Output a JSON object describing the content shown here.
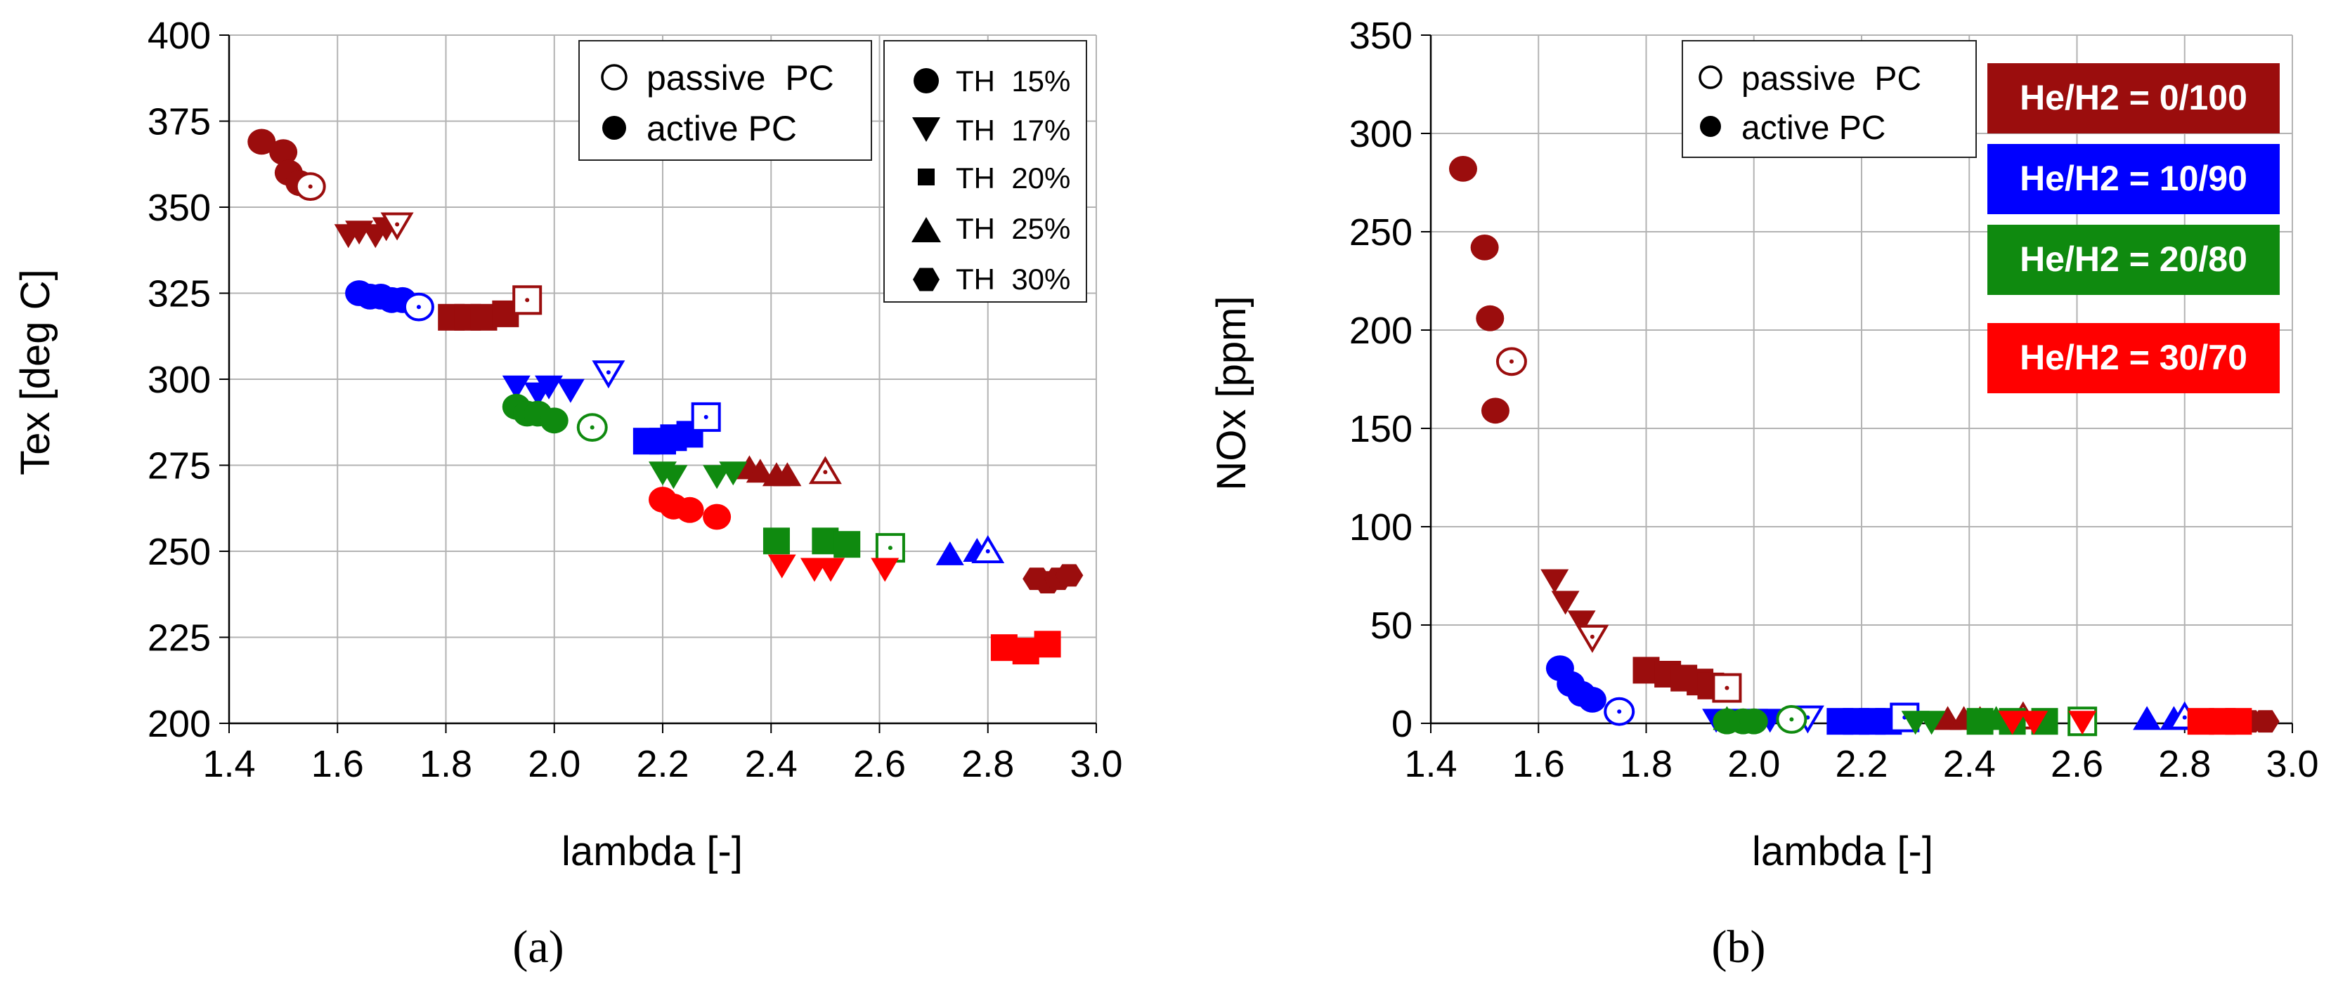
{
  "colors": {
    "dark_red": "#9b0d0d",
    "blue": "#0000ff",
    "green": "#0f8a0f",
    "red": "#ff0000",
    "grid": "#b3b3b3"
  },
  "chart_data": [
    {
      "type": "scatter",
      "panel_label": "(a)",
      "xlabel": "lambda [-]",
      "ylabel": "Tex [deg C]",
      "xlim": [
        1.4,
        3.0
      ],
      "ylim": [
        200,
        400
      ],
      "xticks": [
        "1.4",
        "1.6",
        "1.8",
        "2.0",
        "2.2",
        "2.4",
        "2.6",
        "2.8",
        "3.0"
      ],
      "yticks": [
        "200",
        "225",
        "250",
        "275",
        "300",
        "325",
        "350",
        "375",
        "400"
      ],
      "grid": true,
      "legend_pc": [
        {
          "label": "passive  PC",
          "marker": "open-circle"
        },
        {
          "label": "active PC",
          "marker": "filled-circle"
        }
      ],
      "legend_th": [
        {
          "label": "TH  15%",
          "marker": "circle"
        },
        {
          "label": "TH  17%",
          "marker": "triangle-down"
        },
        {
          "label": "TH  20%",
          "marker": "square"
        },
        {
          "label": "TH  25%",
          "marker": "triangle-up"
        },
        {
          "label": "TH  30%",
          "marker": "hexagon"
        }
      ],
      "series": [
        {
          "name": "He/H2 = 0/100, TH 15%",
          "color": "dark_red",
          "marker": "circle",
          "x": [
            1.46,
            1.5,
            1.51,
            1.53
          ],
          "y": [
            369,
            366,
            360,
            357
          ],
          "passive": {
            "x": 1.55,
            "y": 356
          }
        },
        {
          "name": "He/H2 = 0/100, TH 17%",
          "color": "dark_red",
          "marker": "triangle-down",
          "x": [
            1.62,
            1.64,
            1.67,
            1.69
          ],
          "y": [
            342,
            343,
            342,
            344
          ],
          "passive": {
            "x": 1.71,
            "y": 345
          }
        },
        {
          "name": "He/H2 = 0/100, TH 20%",
          "color": "dark_red",
          "marker": "square",
          "x": [
            1.81,
            1.84,
            1.87,
            1.91
          ],
          "y": [
            318,
            318,
            318,
            319
          ],
          "passive": {
            "x": 1.95,
            "y": 323
          }
        },
        {
          "name": "He/H2 = 0/100, TH 25%",
          "color": "dark_red",
          "marker": "triangle-up",
          "x": [
            2.36,
            2.38,
            2.41,
            2.43
          ],
          "y": [
            274,
            273,
            272,
            272
          ],
          "passive": {
            "x": 2.5,
            "y": 273
          }
        },
        {
          "name": "He/H2 = 0/100, TH 30%",
          "color": "dark_red",
          "marker": "hexagon",
          "x": [
            2.89,
            2.91,
            2.93,
            2.95
          ],
          "y": [
            242,
            241,
            242,
            243
          ],
          "passive": null
        },
        {
          "name": "He/H2 = 10/90, TH 15%",
          "color": "blue",
          "marker": "circle",
          "x": [
            1.64,
            1.66,
            1.68,
            1.7,
            1.72
          ],
          "y": [
            325,
            324,
            324,
            323,
            323
          ],
          "passive": {
            "x": 1.75,
            "y": 321
          }
        },
        {
          "name": "He/H2 = 10/90, TH 17%",
          "color": "blue",
          "marker": "triangle-down",
          "x": [
            1.93,
            1.97,
            1.99,
            2.03
          ],
          "y": [
            298,
            296,
            298,
            297
          ],
          "passive": {
            "x": 2.1,
            "y": 302
          }
        },
        {
          "name": "He/H2 = 10/90, TH 20%",
          "color": "blue",
          "marker": "square",
          "x": [
            2.17,
            2.2,
            2.22,
            2.25
          ],
          "y": [
            282,
            282,
            283,
            284
          ],
          "passive": {
            "x": 2.28,
            "y": 289
          }
        },
        {
          "name": "He/H2 = 10/90, TH 25%",
          "color": "blue",
          "marker": "triangle-up",
          "x": [
            2.73,
            2.78
          ],
          "y": [
            249,
            250
          ],
          "passive": {
            "x": 2.8,
            "y": 250
          }
        },
        {
          "name": "He/H2 = 20/80, TH 15%",
          "color": "green",
          "marker": "circle",
          "x": [
            1.93,
            1.95,
            1.97,
            2.0
          ],
          "y": [
            292,
            290,
            290,
            288
          ],
          "passive": {
            "x": 2.07,
            "y": 286
          }
        },
        {
          "name": "He/H2 = 20/80, TH 17%",
          "color": "green",
          "marker": "triangle-down",
          "x": [
            2.2,
            2.22,
            2.3,
            2.33
          ],
          "y": [
            273,
            272,
            272,
            273
          ],
          "passive": null
        },
        {
          "name": "He/H2 = 20/80, TH 20%",
          "color": "green",
          "marker": "square",
          "x": [
            2.41,
            2.5,
            2.54
          ],
          "y": [
            253,
            253,
            252
          ],
          "passive": {
            "x": 2.62,
            "y": 251
          }
        },
        {
          "name": "He/H2 = 30/70, TH 15%",
          "color": "red",
          "marker": "circle",
          "x": [
            2.2,
            2.22,
            2.25,
            2.3
          ],
          "y": [
            265,
            263,
            262,
            260
          ],
          "passive": null
        },
        {
          "name": "He/H2 = 30/70, TH 17%",
          "color": "red",
          "marker": "triangle-down",
          "x": [
            2.42,
            2.48,
            2.51,
            2.61
          ],
          "y": [
            246,
            245,
            245,
            245
          ],
          "passive": null
        },
        {
          "name": "He/H2 = 30/70, TH 20%",
          "color": "red",
          "marker": "square",
          "x": [
            2.83,
            2.87,
            2.91
          ],
          "y": [
            222,
            221,
            223
          ],
          "passive": null
        }
      ]
    },
    {
      "type": "scatter",
      "panel_label": "(b)",
      "xlabel": "lambda [-]",
      "ylabel": "NOx [ppm]",
      "xlim": [
        1.4,
        3.0
      ],
      "ylim": [
        0,
        350
      ],
      "xticks": [
        "1.4",
        "1.6",
        "1.8",
        "2.0",
        "2.2",
        "2.4",
        "2.6",
        "2.8",
        "3.0"
      ],
      "yticks": [
        "0",
        "50",
        "100",
        "150",
        "200",
        "250",
        "300",
        "350"
      ],
      "grid": true,
      "legend_pc": [
        {
          "label": "passive  PC",
          "marker": "open-circle"
        },
        {
          "label": "active PC",
          "marker": "filled-circle"
        }
      ],
      "legend_mix": [
        {
          "label": "He/H2 = 0/100",
          "color": "dark_red"
        },
        {
          "label": "He/H2 = 10/90",
          "color": "blue"
        },
        {
          "label": "He/H2 = 20/80",
          "color": "green"
        },
        {
          "label": "He/H2 = 30/70",
          "color": "red"
        }
      ],
      "series": [
        {
          "name": "He/H2 = 0/100, TH 15%",
          "color": "dark_red",
          "marker": "circle",
          "x": [
            1.46,
            1.5,
            1.51,
            1.52
          ],
          "y": [
            282,
            242,
            206,
            159
          ],
          "passive": {
            "x": 1.55,
            "y": 184
          }
        },
        {
          "name": "He/H2 = 0/100, TH 17%",
          "color": "dark_red",
          "marker": "triangle-down",
          "x": [
            1.63,
            1.65,
            1.68
          ],
          "y": [
            73,
            62,
            52
          ],
          "passive": {
            "x": 1.7,
            "y": 44
          }
        },
        {
          "name": "He/H2 = 0/100, TH 20%",
          "color": "dark_red",
          "marker": "square",
          "x": [
            1.8,
            1.84,
            1.87,
            1.9,
            1.92
          ],
          "y": [
            27,
            25,
            23,
            21,
            19
          ],
          "passive": {
            "x": 1.95,
            "y": 18
          }
        },
        {
          "name": "He/H2 = 0/100, TH 25%",
          "color": "dark_red",
          "marker": "triangle-up",
          "x": [
            2.36,
            2.39,
            2.42
          ],
          "y": [
            2,
            2,
            2
          ],
          "passive": {
            "x": 2.5,
            "y": 3
          }
        },
        {
          "name": "He/H2 = 0/100, TH 30%",
          "color": "dark_red",
          "marker": "hexagon",
          "x": [
            2.9,
            2.92,
            2.95
          ],
          "y": [
            1,
            1,
            1
          ],
          "passive": null
        },
        {
          "name": "He/H2 = 10/90, TH 15%",
          "color": "blue",
          "marker": "circle",
          "x": [
            1.64,
            1.66,
            1.68,
            1.7
          ],
          "y": [
            28,
            20,
            15,
            12
          ],
          "passive": {
            "x": 1.75,
            "y": 6
          }
        },
        {
          "name": "He/H2 = 10/90, TH 17%",
          "color": "blue",
          "marker": "triangle-down",
          "x": [
            1.93,
            1.97,
            2.0,
            2.03
          ],
          "y": [
            2,
            2,
            2,
            2
          ],
          "passive": {
            "x": 2.1,
            "y": 3
          }
        },
        {
          "name": "He/H2 = 10/90, TH 20%",
          "color": "blue",
          "marker": "square",
          "x": [
            2.16,
            2.19,
            2.22,
            2.25
          ],
          "y": [
            1,
            1,
            1,
            1
          ],
          "passive": {
            "x": 2.28,
            "y": 3
          }
        },
        {
          "name": "He/H2 = 10/90, TH 25%",
          "color": "blue",
          "marker": "triangle-up",
          "x": [
            2.73,
            2.78
          ],
          "y": [
            2,
            2
          ],
          "passive": {
            "x": 2.8,
            "y": 3
          }
        },
        {
          "name": "He/H2 = 20/80, TH 15%",
          "color": "green",
          "marker": "circle",
          "x": [
            1.95,
            1.98,
            2.0
          ],
          "y": [
            1,
            1,
            1
          ],
          "passive": {
            "x": 2.07,
            "y": 2
          }
        },
        {
          "name": "He/H2 = 20/80, TH 17%",
          "color": "green",
          "marker": "triangle-down",
          "x": [
            2.3,
            2.33
          ],
          "y": [
            1,
            1
          ],
          "passive": null
        },
        {
          "name": "He/H2 = 20/80, TH 20%",
          "color": "green",
          "marker": "square",
          "x": [
            2.42,
            2.48,
            2.54
          ],
          "y": [
            1,
            1,
            1
          ],
          "passive": {
            "x": 2.61,
            "y": 1
          }
        },
        {
          "name": "He/H2 = 20/80, TH 25%",
          "color": "green",
          "marker": "triangle-up",
          "x": [
            1.95,
            2.45
          ],
          "y": [
            2,
            2
          ],
          "passive": null
        },
        {
          "name": "He/H2 = 30/70, TH 17%",
          "color": "red",
          "marker": "triangle-down",
          "x": [
            2.48,
            2.52,
            2.61
          ],
          "y": [
            1,
            1,
            1
          ],
          "passive": null
        },
        {
          "name": "He/H2 = 30/70, TH 20%",
          "color": "red",
          "marker": "square",
          "x": [
            2.83,
            2.87,
            2.9
          ],
          "y": [
            1,
            1,
            1
          ],
          "passive": null
        }
      ]
    }
  ]
}
